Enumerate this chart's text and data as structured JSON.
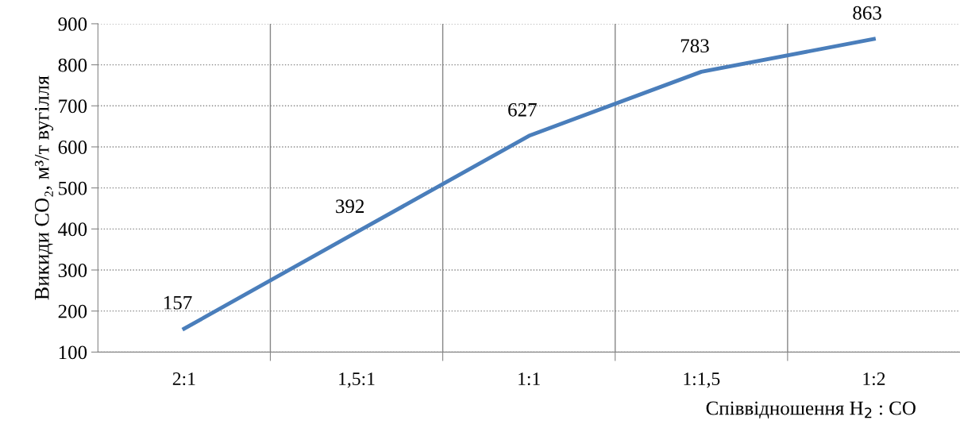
{
  "chart_data": {
    "type": "line",
    "categories": [
      "2:1",
      "1,5:1",
      "1:1",
      "1:1,5",
      "1:2"
    ],
    "series": [
      {
        "color": "#4a7ebb",
        "values": [
          157,
          392,
          627,
          783,
          863
        ]
      }
    ],
    "ylabel": "Викиди CO₂, м³/т вугілля",
    "xlabel": "Співвідношення H$_{2}$ : CO",
    "ylim": [
      100,
      900
    ],
    "yticks": [
      100,
      200,
      300,
      400,
      500,
      600,
      700,
      800,
      900
    ],
    "grid": true,
    "data_labels": true,
    "marker": "none",
    "line_style": "solid"
  }
}
